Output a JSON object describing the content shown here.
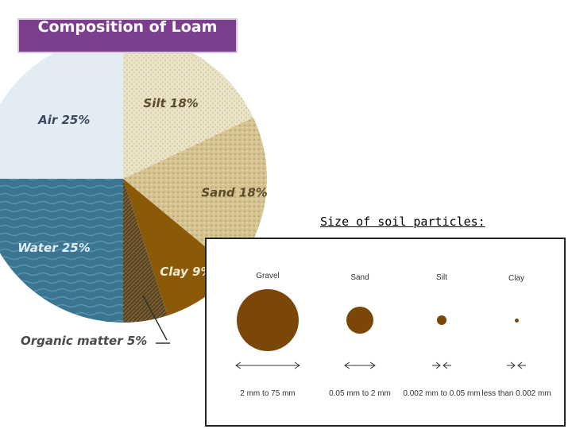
{
  "colors": {
    "title_bg": "#7b3f8e",
    "air": "#e4ecf3",
    "silt": "#ebe3c8",
    "sand": "#d5c391",
    "clay": "#8a5a08",
    "organic_matter": "#5a4422",
    "water": "#3a7591",
    "particle": "#7b4708"
  },
  "chart_data": [
    {
      "type": "pie",
      "title": "Composition of Loam",
      "slices": [
        {
          "label": "Silt",
          "value": 18,
          "text": "Silt 18%"
        },
        {
          "label": "Sand",
          "value": 18,
          "text": "Sand 18%"
        },
        {
          "label": "Clay",
          "value": 9,
          "text": "Clay 9%"
        },
        {
          "label": "Organic matter",
          "value": 5,
          "text": "Organic matter 5%"
        },
        {
          "label": "Water",
          "value": 25,
          "text": "Water 25%"
        },
        {
          "label": "Air",
          "value": 25,
          "text": "Air 25%"
        }
      ]
    },
    {
      "type": "table",
      "title": "Size of soil particles:",
      "particles": [
        {
          "name": "Gravel",
          "range": "2 mm to 75 mm"
        },
        {
          "name": "Sand",
          "range": "0.05 mm to 2 mm"
        },
        {
          "name": "Silt",
          "range": "0.002 mm to 0.05 mm"
        },
        {
          "name": "Clay",
          "range": "less than 0.002 mm"
        }
      ]
    }
  ]
}
